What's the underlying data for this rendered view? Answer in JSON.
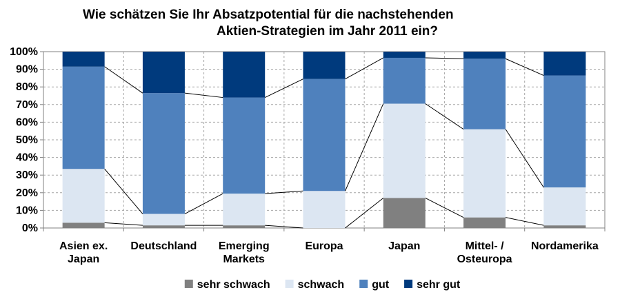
{
  "chart_data": {
    "type": "bar",
    "stacked": true,
    "percent_stacked": true,
    "title_lines": [
      "Wie schätzen Sie Ihr Absatzpotential für die nachstehenden",
      "Aktien-Strategien im Jahr 2011 ein?"
    ],
    "categories": [
      [
        "Asien ex.",
        "Japan"
      ],
      [
        "Deutschland"
      ],
      [
        "Emerging",
        "Markets"
      ],
      [
        "Europa"
      ],
      [
        "Japan"
      ],
      [
        "Mittel- /",
        "Osteuropa"
      ],
      [
        "Nordamerika"
      ]
    ],
    "ylim": [
      0,
      100
    ],
    "yticks": [
      "0%",
      "10%",
      "20%",
      "30%",
      "40%",
      "50%",
      "60%",
      "70%",
      "80%",
      "90%",
      "100%"
    ],
    "grid": true,
    "series_connector_lines": true,
    "legend_position": "bottom",
    "series": [
      {
        "name": "sehr schwach",
        "color": "#808080",
        "values": [
          3,
          1.5,
          1.5,
          0,
          17,
          6,
          1.5
        ]
      },
      {
        "name": "schwach",
        "color": "#dce6f2",
        "values": [
          30.5,
          6.5,
          18,
          21,
          53.5,
          50,
          21.5
        ]
      },
      {
        "name": "gut",
        "color": "#4f81bd",
        "values": [
          58,
          68.5,
          54.5,
          63.5,
          26,
          40,
          63.5
        ]
      },
      {
        "name": "sehr gut",
        "color": "#003a7d",
        "values": [
          8.5,
          23.5,
          26,
          15.5,
          3.5,
          4,
          13.5
        ]
      }
    ]
  }
}
